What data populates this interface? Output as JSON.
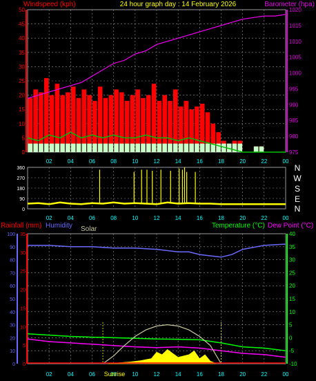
{
  "header": {
    "left_label": "Windspeed (kph)",
    "center_title": "24 hour graph day : 14 February 2026",
    "right_label": "Barometer (hpa)"
  },
  "colors": {
    "wind_axis": "#ff0000",
    "wind_avg": "#00c000",
    "wind_light": "#c8ffc8",
    "barometer": "#e000e0",
    "direction": "#ffff00",
    "rain_axis": "#ff0000",
    "humidity": "#6b6bff",
    "solar": "#c8c8a0",
    "temperature": "#00ff00",
    "dewpoint": "#ff00ff",
    "grid": "#9a9a9a",
    "hour_labels": "#00ffff"
  },
  "x_tick_labels": [
    "02",
    "04",
    "06",
    "08",
    "10",
    "12",
    "14",
    "16",
    "18",
    "20",
    "22",
    "00"
  ],
  "chart_data": [
    {
      "type": "bar",
      "panel": "wind",
      "x_range_hours": [
        0,
        24
      ],
      "left_axis": {
        "label": "Windspeed (kph)",
        "ylim": [
          0,
          50
        ],
        "ticks": [
          0,
          5,
          10,
          15,
          20,
          25,
          30,
          35,
          40,
          45,
          50
        ]
      },
      "right_axis": {
        "label": "Barometer (hpa)",
        "ylim": [
          975,
          1020
        ],
        "ticks": [
          975,
          980,
          985,
          990,
          995,
          1000,
          1005,
          1010,
          1015,
          1020
        ]
      },
      "series": [
        {
          "kind": "gust_bars",
          "x": [
            0.0,
            0.5,
            1.0,
            1.5,
            2.0,
            2.5,
            3.0,
            3.5,
            4.0,
            4.5,
            5.0,
            5.5,
            6.0,
            6.5,
            7.0,
            7.5,
            8.0,
            8.5,
            9.0,
            9.5,
            10.0,
            10.5,
            11.0,
            11.5,
            12.0,
            12.5,
            13.0,
            13.5,
            14.0,
            14.5,
            15.0,
            15.5,
            16.0,
            16.5,
            17.0,
            17.5,
            18.0,
            18.5,
            19.0,
            19.5,
            20.0,
            20.5,
            21.0,
            21.5,
            22.0,
            22.5,
            23.0,
            23.5
          ],
          "values": [
            19,
            22,
            21,
            26,
            20,
            24,
            20,
            21,
            23,
            19,
            22,
            20,
            18,
            23,
            19,
            20,
            22,
            21,
            18,
            20,
            22,
            19,
            20,
            24,
            18,
            20,
            18,
            22,
            16,
            18,
            15,
            16,
            17,
            14,
            10,
            7,
            4,
            3,
            4,
            4,
            0,
            0,
            2,
            2,
            0,
            0,
            0,
            0
          ]
        },
        {
          "kind": "wind_avg",
          "x": [
            0.0,
            1.0,
            2.0,
            3.0,
            4.0,
            5.0,
            6.0,
            7.0,
            8.0,
            9.0,
            10.0,
            11.0,
            12.0,
            13.0,
            14.0,
            15.0,
            16.0,
            17.0,
            18.0,
            19.0,
            20.0,
            21.0,
            22.0,
            23.0,
            24.0
          ],
          "values": [
            5,
            4,
            6,
            5,
            7,
            5,
            6,
            5,
            6,
            5,
            5,
            6,
            5,
            5,
            4,
            5,
            4,
            3,
            2,
            1,
            0,
            0,
            0,
            0,
            0
          ]
        },
        {
          "kind": "barometer",
          "x": [
            0.0,
            1.0,
            2.0,
            3.0,
            4.0,
            5.0,
            6.0,
            7.0,
            8.0,
            9.0,
            10.0,
            11.0,
            12.0,
            13.0,
            14.0,
            15.0,
            16.0,
            17.0,
            18.0,
            19.0,
            20.0,
            21.0,
            22.0,
            23.0,
            24.0
          ],
          "values": [
            992,
            993,
            994,
            995,
            996,
            997,
            999,
            1001,
            1003,
            1004,
            1006,
            1007,
            1009,
            1010,
            1011,
            1012,
            1013,
            1014,
            1015,
            1016,
            1017,
            1017.5,
            1018,
            1018,
            1018.5
          ]
        }
      ]
    },
    {
      "type": "line",
      "panel": "wind_direction",
      "x_range_hours": [
        0,
        24
      ],
      "ylim": [
        0,
        360
      ],
      "y_ticks": [
        0,
        90,
        180,
        270,
        360
      ],
      "compass_labels": [
        "N",
        "W",
        "S",
        "E",
        "N"
      ],
      "x": [
        0.0,
        1.0,
        2.0,
        3.0,
        4.0,
        5.0,
        6.0,
        7.0,
        8.0,
        9.0,
        10.0,
        11.0,
        12.0,
        13.0,
        14.0,
        15.0,
        16.0,
        17.0,
        18.0,
        19.0,
        20.0,
        21.0,
        22.0,
        23.0,
        24.0
      ],
      "values": [
        45,
        50,
        40,
        55,
        45,
        40,
        50,
        45,
        55,
        45,
        50,
        45,
        40,
        55,
        45,
        50,
        45,
        45,
        40,
        40,
        40,
        40,
        40,
        40,
        40
      ],
      "spikes_x": [
        6.7,
        9.9,
        10.6,
        11.1,
        11.6,
        12.4,
        13.3,
        14.1,
        14.4,
        14.6,
        14.8,
        15.6
      ],
      "spikes_values": [
        340,
        320,
        340,
        340,
        330,
        340,
        330,
        350,
        340,
        360,
        320,
        320
      ]
    },
    {
      "type": "line",
      "panel": "climate",
      "x_range_hours": [
        0,
        24
      ],
      "axes": {
        "rainfall": {
          "label": "Rainfall (mm)",
          "ylim": [
            0,
            35
          ],
          "ticks": [
            0,
            5,
            10,
            15,
            20,
            25,
            30,
            35
          ]
        },
        "humidity": {
          "label": "Humidity",
          "ylim": [
            0,
            100
          ],
          "ticks": [
            0,
            10,
            20,
            30,
            40,
            50,
            60,
            70,
            80,
            90,
            100
          ]
        },
        "solar": {
          "label": "Solar"
        },
        "temperature": {
          "label": "Temperature (°C)",
          "ylim": [
            -10,
            40
          ],
          "ticks": [
            -10,
            -5,
            0,
            5,
            10,
            15,
            20,
            25,
            30,
            35,
            40
          ]
        },
        "dewpoint": {
          "label": "Dew Point (°C)"
        }
      },
      "sunrise_label": "Sunrise",
      "x_tick_labels": [
        "02",
        "04",
        "06",
        "08",
        "10",
        "12",
        "14",
        "16",
        "18",
        "20",
        "22",
        "00"
      ],
      "series": [
        {
          "name": "Humidity",
          "axis": "humidity",
          "x": [
            0,
            2,
            4,
            6,
            8,
            10,
            12,
            14,
            15,
            16,
            17,
            18,
            19,
            20,
            22,
            24
          ],
          "values": [
            91,
            91,
            90,
            90,
            89,
            89,
            88,
            86,
            86,
            84,
            83,
            82,
            84,
            88,
            91,
            92
          ]
        },
        {
          "name": "Temperature",
          "axis": "temperature",
          "x": [
            0,
            2,
            4,
            6,
            8,
            10,
            12,
            14,
            16,
            18,
            20,
            22,
            24
          ],
          "values": [
            1.5,
            1.0,
            0.5,
            0.2,
            0.0,
            -0.2,
            -0.5,
            -0.6,
            -0.8,
            -2.0,
            -3.5,
            -4.0,
            -5.0
          ]
        },
        {
          "name": "Dew Point",
          "axis": "temperature",
          "x": [
            0,
            2,
            4,
            6,
            8,
            10,
            12,
            14,
            16,
            18,
            20,
            22,
            24
          ],
          "values": [
            -0.5,
            -1.5,
            -2.0,
            -2.5,
            -3.0,
            -3.5,
            -3.8,
            -3.5,
            -4.0,
            -5.0,
            -6.0,
            -6.5,
            -7.5
          ]
        },
        {
          "name": "Solar",
          "axis": "temperature",
          "x": [
            7.0,
            8.0,
            9.0,
            10.0,
            11.0,
            12.0,
            13.0,
            14.0,
            15.0,
            16.0,
            17.0,
            18.0
          ],
          "values": [
            -10,
            -7,
            -3,
            0.5,
            3,
            4.5,
            5,
            4.5,
            3,
            0.5,
            -3,
            -10
          ]
        },
        {
          "name": "Solar radiation",
          "axis": "temperature",
          "x": [
            7.5,
            8.5,
            9.5,
            10.5,
            11.5,
            12.0,
            12.5,
            13.0,
            13.5,
            14.0,
            14.5,
            15.0,
            15.5,
            16.0,
            16.5,
            17.0,
            17.5
          ],
          "values": [
            -10,
            -9.6,
            -9.3,
            -8.8,
            -8.0,
            -5.5,
            -6.5,
            -4.5,
            -6.0,
            -7.5,
            -7.0,
            -6.5,
            -5.0,
            -8.0,
            -6.5,
            -9.0,
            -9.8
          ]
        }
      ]
    }
  ]
}
